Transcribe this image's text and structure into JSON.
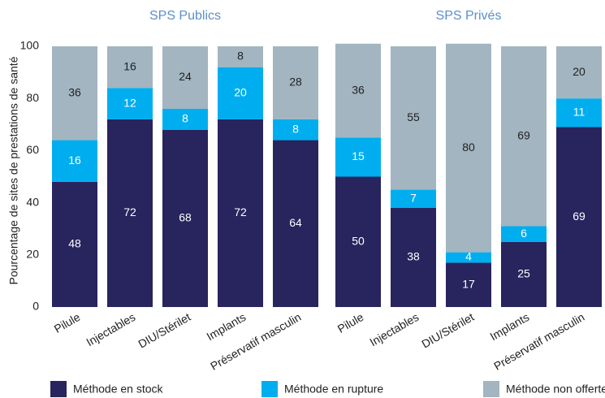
{
  "chart_data": {
    "type": "bar",
    "stacked": true,
    "y_label": "Pourcentage de sites de prestations de santé",
    "ylim": [
      0,
      100
    ],
    "yticks": [
      0,
      20,
      40,
      60,
      80,
      100
    ],
    "series": [
      {
        "name": "Méthode en stock",
        "color": "#28245e",
        "label_color": "#ffffff"
      },
      {
        "name": "Méthode en rupture",
        "color": "#00aeef",
        "label_color": "#ffffff"
      },
      {
        "name": "Méthode non offerte",
        "color": "#a2b5c1",
        "label_color": "#222222"
      }
    ],
    "panels": [
      {
        "title": "SPS Publics",
        "categories": [
          "Pilule",
          "Injectables",
          "DIU/Stérilet",
          "Implants",
          "Préservatif masculin"
        ],
        "values": [
          [
            48,
            72,
            68,
            72,
            64
          ],
          [
            16,
            12,
            8,
            20,
            8
          ],
          [
            36,
            16,
            24,
            8,
            28
          ]
        ]
      },
      {
        "title": "SPS Privés",
        "categories": [
          "Pilule",
          "Injectables",
          "DIU/Stérilet",
          "Implants",
          "Préservatif masculin"
        ],
        "values": [
          [
            50,
            38,
            17,
            25,
            69
          ],
          [
            15,
            7,
            4,
            6,
            11
          ],
          [
            36,
            55,
            80,
            69,
            20
          ]
        ]
      }
    ]
  }
}
